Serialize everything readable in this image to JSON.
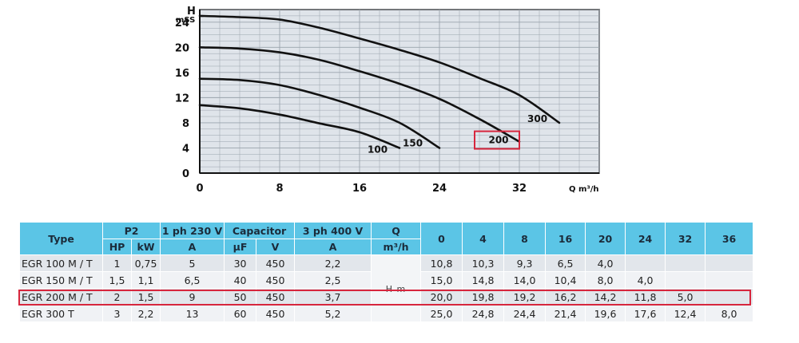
{
  "chart_data": {
    "type": "line",
    "title": "",
    "xlabel": "Q m³/h",
    "ylabel_line1": "H",
    "ylabel_line2": "mSS",
    "xlim": [
      0,
      40
    ],
    "ylim": [
      0,
      26
    ],
    "xticks": [
      "0",
      "8",
      "16",
      "24",
      "32"
    ],
    "yticks": [
      "0",
      "4",
      "8",
      "12",
      "16",
      "20",
      "24"
    ],
    "xtick_values": [
      0,
      8,
      16,
      24,
      32
    ],
    "ytick_values": [
      0,
      4,
      8,
      12,
      16,
      20,
      24
    ],
    "grid": true,
    "series": [
      {
        "name": "100",
        "x": [
          0,
          4,
          8,
          12,
          16,
          20
        ],
        "y": [
          10.8,
          10.3,
          9.3,
          7.9,
          6.5,
          4.0
        ]
      },
      {
        "name": "150",
        "x": [
          0,
          4,
          8,
          12,
          16,
          20,
          24
        ],
        "y": [
          15.0,
          14.8,
          14.0,
          12.4,
          10.4,
          8.0,
          4.0
        ]
      },
      {
        "name": "200",
        "x": [
          0,
          4,
          8,
          12,
          16,
          20,
          24,
          28,
          32
        ],
        "y": [
          20.0,
          19.8,
          19.2,
          18.0,
          16.2,
          14.2,
          11.8,
          8.6,
          5.0
        ]
      },
      {
        "name": "300",
        "x": [
          0,
          4,
          8,
          12,
          16,
          20,
          24,
          28,
          32,
          36
        ],
        "y": [
          25.0,
          24.8,
          24.4,
          23.1,
          21.4,
          19.6,
          17.6,
          15.1,
          12.4,
          8.0
        ]
      }
    ],
    "highlighted_series": "200",
    "highlight_color": "#d7263d",
    "line_color": "#111111",
    "plot_background": "#dfe4ea"
  },
  "table": {
    "header_row1": {
      "type": "Type",
      "p2": "P2",
      "ph1": "1 ph 230 V",
      "capacitor": "Capacitor",
      "ph3": "3 ph 400 V",
      "q": "Q",
      "flows": [
        "0",
        "4",
        "8",
        "16",
        "20",
        "24",
        "32",
        "36"
      ]
    },
    "header_row2": {
      "hp": "HP",
      "kw": "kW",
      "a1": "A",
      "uf": "µF",
      "v": "V",
      "a3": "A",
      "q_unit": "m³/h"
    },
    "q_mark": "H m",
    "rows": [
      {
        "type": "EGR 100 M / T",
        "hp": "1",
        "kw": "0,75",
        "a1": "5",
        "uf": "30",
        "v": "450",
        "a3": "2,2",
        "h": [
          "10,8",
          "10,3",
          "9,3",
          "6,5",
          "4,0",
          "",
          "",
          ""
        ]
      },
      {
        "type": "EGR 150  M / T",
        "hp": "1,5",
        "kw": "1,1",
        "a1": "6,5",
        "uf": "40",
        "v": "450",
        "a3": "2,5",
        "h": [
          "15,0",
          "14,8",
          "14,0",
          "10,4",
          "8,0",
          "4,0",
          "",
          ""
        ]
      },
      {
        "type": "EGR 200  M / T",
        "hp": "2",
        "kw": "1,5",
        "a1": "9",
        "uf": "50",
        "v": "450",
        "a3": "3,7",
        "h": [
          "20,0",
          "19,8",
          "19,2",
          "16,2",
          "14,2",
          "11,8",
          "5,0",
          ""
        ]
      },
      {
        "type": "EGR 300 T",
        "hp": "3",
        "kw": "2,2",
        "a1": "13",
        "uf": "60",
        "v": "450",
        "a3": "5,2",
        "h": [
          "25,0",
          "24,8",
          "24,4",
          "21,4",
          "19,6",
          "17,6",
          "12,4",
          "8,0"
        ]
      }
    ],
    "highlight_row": 2
  }
}
